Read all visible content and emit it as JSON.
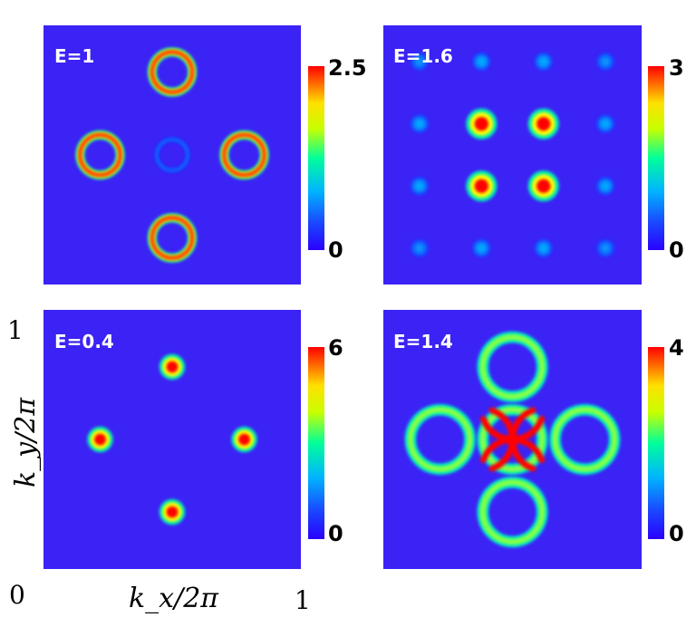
{
  "chart_data": {
    "type": "heatmap",
    "colormap": [
      "#2a00ff",
      "#00b4ff",
      "#00ff9a",
      "#ffff00",
      "#ff0000"
    ],
    "background": "#3b22f5",
    "x_axis": {
      "label": "k_x/2π",
      "ticks": [
        "0",
        "1"
      ],
      "range": [
        0,
        1
      ]
    },
    "y_axis": {
      "label": "k_y/2π",
      "ticks": [
        "0",
        "1"
      ],
      "range": [
        0,
        1
      ]
    },
    "panels": [
      {
        "label": "E=1",
        "colorbar": {
          "min_label": "0",
          "max_label": "2.5",
          "min": 0,
          "max": 2.5
        },
        "features": [
          {
            "shape": "ring",
            "x": 0.5,
            "y": 0.82,
            "r": 0.078,
            "w": 0.035,
            "v": 2.4
          },
          {
            "shape": "ring",
            "x": 0.22,
            "y": 0.5,
            "r": 0.078,
            "w": 0.035,
            "v": 2.4
          },
          {
            "shape": "ring",
            "x": 0.78,
            "y": 0.5,
            "r": 0.078,
            "w": 0.035,
            "v": 2.4
          },
          {
            "shape": "ring",
            "x": 0.5,
            "y": 0.18,
            "r": 0.078,
            "w": 0.035,
            "v": 2.4
          },
          {
            "shape": "ring",
            "x": 0.5,
            "y": 0.5,
            "r": 0.06,
            "w": 0.018,
            "v": 0.35
          }
        ]
      },
      {
        "label": "E=1.6",
        "colorbar": {
          "min_label": "0",
          "max_label": "3",
          "min": 0,
          "max": 3
        },
        "features": [
          {
            "shape": "spot",
            "x": 0.38,
            "y": 0.62,
            "r": 0.06,
            "v": 3.0
          },
          {
            "shape": "spot",
            "x": 0.62,
            "y": 0.62,
            "r": 0.06,
            "v": 3.0
          },
          {
            "shape": "spot",
            "x": 0.38,
            "y": 0.38,
            "r": 0.06,
            "v": 3.0
          },
          {
            "shape": "spot",
            "x": 0.62,
            "y": 0.38,
            "r": 0.06,
            "v": 3.0
          },
          {
            "shape": "spot",
            "x": 0.14,
            "y": 0.62,
            "r": 0.035,
            "v": 0.7
          },
          {
            "shape": "spot",
            "x": 0.14,
            "y": 0.38,
            "r": 0.035,
            "v": 0.7
          },
          {
            "shape": "spot",
            "x": 0.86,
            "y": 0.62,
            "r": 0.035,
            "v": 0.7
          },
          {
            "shape": "spot",
            "x": 0.86,
            "y": 0.38,
            "r": 0.035,
            "v": 0.7
          },
          {
            "shape": "spot",
            "x": 0.38,
            "y": 0.86,
            "r": 0.035,
            "v": 0.7
          },
          {
            "shape": "spot",
            "x": 0.62,
            "y": 0.86,
            "r": 0.035,
            "v": 0.7
          },
          {
            "shape": "spot",
            "x": 0.38,
            "y": 0.14,
            "r": 0.035,
            "v": 0.7
          },
          {
            "shape": "spot",
            "x": 0.62,
            "y": 0.14,
            "r": 0.035,
            "v": 0.7
          },
          {
            "shape": "spot",
            "x": 0.14,
            "y": 0.86,
            "r": 0.035,
            "v": 0.6
          },
          {
            "shape": "spot",
            "x": 0.86,
            "y": 0.86,
            "r": 0.035,
            "v": 0.6
          },
          {
            "shape": "spot",
            "x": 0.14,
            "y": 0.14,
            "r": 0.035,
            "v": 0.6
          },
          {
            "shape": "spot",
            "x": 0.86,
            "y": 0.14,
            "r": 0.035,
            "v": 0.6
          }
        ]
      },
      {
        "label": "E=0.4",
        "colorbar": {
          "min_label": "0",
          "max_label": "6",
          "min": 0,
          "max": 6
        },
        "features": [
          {
            "shape": "spot",
            "x": 0.5,
            "y": 0.78,
            "r": 0.05,
            "v": 6
          },
          {
            "shape": "spot",
            "x": 0.22,
            "y": 0.5,
            "r": 0.05,
            "v": 6
          },
          {
            "shape": "spot",
            "x": 0.78,
            "y": 0.5,
            "r": 0.05,
            "v": 6
          },
          {
            "shape": "spot",
            "x": 0.5,
            "y": 0.22,
            "r": 0.05,
            "v": 6
          }
        ]
      },
      {
        "label": "E=1.4",
        "colorbar": {
          "min_label": "0",
          "max_label": "4",
          "min": 0,
          "max": 4
        },
        "features": [
          {
            "shape": "ring",
            "x": 0.5,
            "y": 0.78,
            "r": 0.115,
            "w": 0.045,
            "v": 2.6
          },
          {
            "shape": "ring",
            "x": 0.22,
            "y": 0.5,
            "r": 0.115,
            "w": 0.045,
            "v": 2.6
          },
          {
            "shape": "ring",
            "x": 0.78,
            "y": 0.5,
            "r": 0.115,
            "w": 0.045,
            "v": 2.6
          },
          {
            "shape": "ring",
            "x": 0.5,
            "y": 0.22,
            "r": 0.115,
            "w": 0.045,
            "v": 2.6
          },
          {
            "shape": "ring",
            "x": 0.5,
            "y": 0.5,
            "r": 0.115,
            "w": 0.045,
            "v": 2.6
          },
          {
            "shape": "arc",
            "x": 0.5,
            "y": 0.62,
            "r": 0.12,
            "from": 200,
            "to": 340,
            "v": 4
          },
          {
            "shape": "arc",
            "x": 0.5,
            "y": 0.38,
            "r": 0.12,
            "from": 20,
            "to": 160,
            "v": 4
          },
          {
            "shape": "arc",
            "x": 0.38,
            "y": 0.5,
            "r": 0.12,
            "from": -70,
            "to": 70,
            "v": 4
          },
          {
            "shape": "arc",
            "x": 0.62,
            "y": 0.5,
            "r": 0.12,
            "from": 110,
            "to": 250,
            "v": 4
          }
        ]
      }
    ]
  }
}
